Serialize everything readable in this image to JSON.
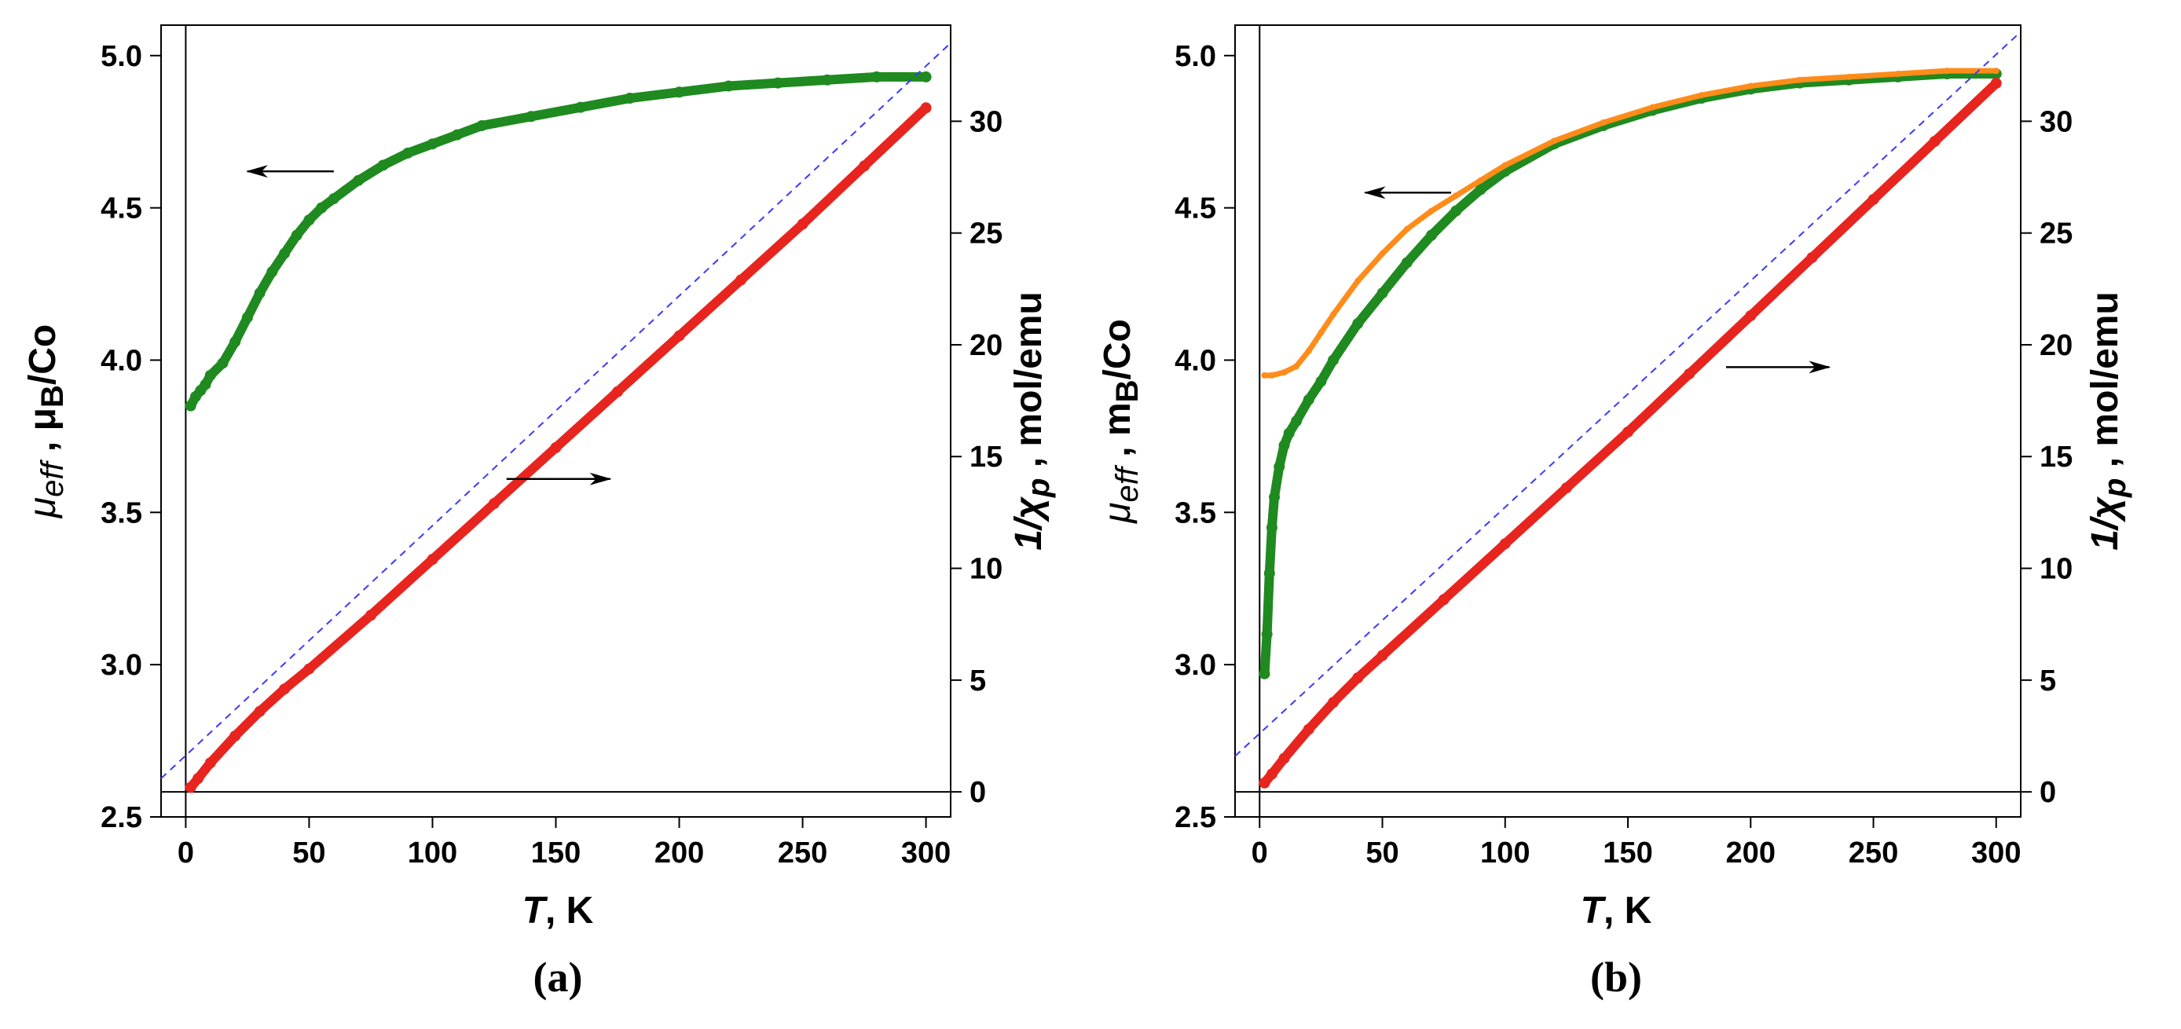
{
  "chart_data": [
    {
      "type": "scatter",
      "panel": "a",
      "panel_label": "(a)",
      "xlabel_italic": "T",
      "xlabel_rest": ", K",
      "ylabel_left_main": "μ",
      "ylabel_left_sub": "eff",
      "ylabel_left_rest": " , μ",
      "ylabel_left_sub2": "B",
      "ylabel_left_tail": "/Co",
      "ylabel_right_main": "1/χ",
      "ylabel_right_sub": "p",
      "ylabel_right_rest": " , mol/emu",
      "xlim": [
        -10,
        310
      ],
      "ylim_left": [
        2.5,
        5.1
      ],
      "ylim_right": [
        -1.12,
        34.3
      ],
      "x_ticks": [
        0,
        50,
        100,
        150,
        200,
        250,
        300
      ],
      "y_left_ticks": [
        2.5,
        3.0,
        3.5,
        4.0,
        4.5,
        5.0
      ],
      "y_left_tick_labels": [
        "2.5",
        "3.0",
        "3.5",
        "4.0",
        "4.5",
        "5.0"
      ],
      "y_right_ticks": [
        0,
        5,
        10,
        15,
        20,
        25,
        30
      ],
      "annotations": [
        {
          "type": "arrow",
          "direction": "left",
          "points_to": "left axis",
          "from": [
            60,
            4.62
          ],
          "to": [
            25,
            4.62
          ]
        },
        {
          "type": "arrow",
          "direction": "right",
          "points_to": "right axis",
          "from": [
            130,
            14.0
          ],
          "to": [
            172,
            14.0
          ]
        }
      ],
      "series": [
        {
          "name": "μeff",
          "axis": "left",
          "color": "#1f8a1f",
          "x": [
            2,
            4,
            6,
            8,
            10,
            15,
            20,
            25,
            30,
            35,
            40,
            45,
            50,
            55,
            60,
            70,
            80,
            90,
            100,
            110,
            120,
            140,
            160,
            180,
            200,
            220,
            240,
            260,
            280,
            300
          ],
          "y": [
            3.85,
            3.88,
            3.9,
            3.92,
            3.95,
            3.99,
            4.06,
            4.14,
            4.22,
            4.29,
            4.35,
            4.41,
            4.46,
            4.5,
            4.53,
            4.59,
            4.64,
            4.68,
            4.71,
            4.74,
            4.77,
            4.8,
            4.83,
            4.86,
            4.88,
            4.9,
            4.91,
            4.92,
            4.93,
            4.93
          ]
        },
        {
          "name": "1/χp",
          "axis": "right",
          "color": "#e8241e",
          "x": [
            2,
            5,
            10,
            20,
            30,
            40,
            50,
            75,
            100,
            125,
            150,
            175,
            200,
            225,
            250,
            275,
            300
          ],
          "y": [
            0.2,
            0.6,
            1.3,
            2.5,
            3.6,
            4.6,
            5.5,
            7.9,
            10.4,
            12.9,
            15.4,
            17.9,
            20.4,
            22.9,
            25.4,
            28.0,
            30.6
          ]
        },
        {
          "name": "linear fit",
          "axis": "right",
          "color": "#3a3aff",
          "style": "dashed",
          "x": [
            -10,
            310
          ],
          "y": [
            0.6,
            33.5
          ]
        }
      ]
    },
    {
      "type": "scatter",
      "panel": "b",
      "panel_label": "(b)",
      "xlabel_italic": "T",
      "xlabel_rest": ", K",
      "ylabel_left_main": "μ",
      "ylabel_left_sub": "eff",
      "ylabel_left_rest": " , m",
      "ylabel_left_sub2": "B",
      "ylabel_left_tail": "/Co",
      "ylabel_right_main": "1/χ",
      "ylabel_right_sub": "p",
      "ylabel_right_rest": " , mol/emu",
      "xlim": [
        -10,
        310
      ],
      "ylim_left": [
        2.5,
        5.1
      ],
      "ylim_right": [
        -1.12,
        34.3
      ],
      "x_ticks": [
        0,
        50,
        100,
        150,
        200,
        250,
        300
      ],
      "y_left_ticks": [
        2.5,
        3.0,
        3.5,
        4.0,
        4.5,
        5.0
      ],
      "y_left_tick_labels": [
        "2.5",
        "3.0",
        "3.5",
        "4.0",
        "4.5",
        "5.0"
      ],
      "y_right_ticks": [
        0,
        5,
        10,
        15,
        20,
        25,
        30
      ],
      "annotations": [
        {
          "type": "arrow",
          "direction": "left",
          "points_to": "left axis",
          "from": [
            78,
            4.55
          ],
          "to": [
            43,
            4.55
          ]
        },
        {
          "type": "arrow",
          "direction": "right",
          "points_to": "right axis",
          "from": [
            190,
            19.0
          ],
          "to": [
            232,
            19.0
          ]
        }
      ],
      "series": [
        {
          "name": "μeff (green)",
          "axis": "left",
          "color": "#1f8a1f",
          "x": [
            2,
            3,
            4,
            5,
            6,
            8,
            10,
            12,
            15,
            20,
            25,
            30,
            40,
            50,
            60,
            70,
            80,
            90,
            100,
            120,
            140,
            160,
            180,
            200,
            220,
            240,
            260,
            280,
            300
          ],
          "y": [
            2.97,
            3.1,
            3.3,
            3.45,
            3.55,
            3.65,
            3.72,
            3.76,
            3.8,
            3.87,
            3.93,
            4.0,
            4.12,
            4.22,
            4.32,
            4.41,
            4.49,
            4.56,
            4.62,
            4.71,
            4.77,
            4.82,
            4.86,
            4.89,
            4.91,
            4.92,
            4.93,
            4.94,
            4.94
          ]
        },
        {
          "name": "μeff (orange)",
          "axis": "left",
          "color": "#ff8c1a",
          "x": [
            2,
            5,
            10,
            15,
            20,
            25,
            30,
            40,
            50,
            60,
            70,
            80,
            90,
            100,
            120,
            140,
            160,
            180,
            200,
            220,
            240,
            260,
            280,
            300
          ],
          "y": [
            3.95,
            3.95,
            3.96,
            3.98,
            4.03,
            4.09,
            4.15,
            4.26,
            4.35,
            4.43,
            4.49,
            4.54,
            4.59,
            4.64,
            4.72,
            4.78,
            4.83,
            4.87,
            4.9,
            4.92,
            4.93,
            4.94,
            4.95,
            4.95
          ]
        },
        {
          "name": "1/χp",
          "axis": "right",
          "color": "#e8241e",
          "x": [
            2,
            5,
            10,
            20,
            30,
            40,
            50,
            75,
            100,
            125,
            150,
            175,
            200,
            225,
            250,
            275,
            300
          ],
          "y": [
            0.4,
            0.8,
            1.5,
            2.8,
            4.0,
            5.1,
            6.1,
            8.6,
            11.1,
            13.6,
            16.1,
            18.7,
            21.3,
            23.9,
            26.5,
            29.1,
            31.7
          ]
        },
        {
          "name": "linear fit",
          "axis": "right",
          "color": "#3a3aff",
          "style": "dashed",
          "x": [
            -10,
            310
          ],
          "y": [
            1.6,
            34.0
          ]
        }
      ]
    }
  ]
}
